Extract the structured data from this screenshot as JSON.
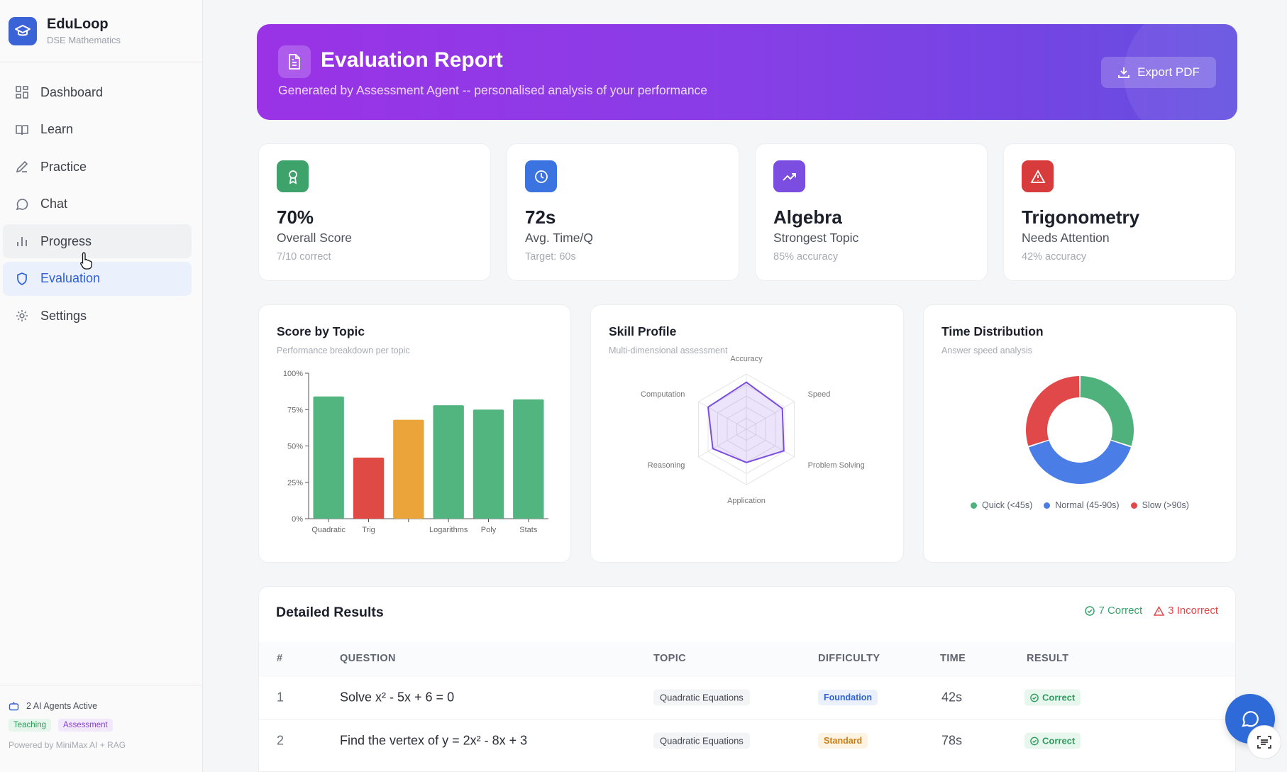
{
  "app": {
    "name": "EduLoop",
    "subtitle": "DSE Mathematics"
  },
  "sidebar": {
    "items": [
      {
        "label": "Dashboard",
        "icon": "grid-icon"
      },
      {
        "label": "Learn",
        "icon": "book-icon"
      },
      {
        "label": "Practice",
        "icon": "pencil-icon"
      },
      {
        "label": "Chat",
        "icon": "chat-bubble-icon"
      },
      {
        "label": "Progress",
        "icon": "bar-chart-icon"
      },
      {
        "label": "Evaluation",
        "icon": "shield-icon"
      },
      {
        "label": "Settings",
        "icon": "gear-icon"
      }
    ],
    "active": "Evaluation",
    "hovered": "Progress",
    "footer": {
      "agents_text": "2 AI Agents Active",
      "tags": [
        "Teaching",
        "Assessment"
      ],
      "powered": "Powered by MiniMax AI + RAG"
    }
  },
  "hero": {
    "title": "Evaluation Report",
    "subtitle": "Generated by Assessment Agent -- personalised analysis of your performance",
    "export_label": "Export PDF"
  },
  "stats": [
    {
      "value": "70%",
      "label": "Overall Score",
      "sub": "7/10 correct",
      "color": "#3ea36b",
      "icon": "award-icon"
    },
    {
      "value": "72s",
      "label": "Avg. Time/Q",
      "sub": "Target: 60s",
      "color": "#3b74e0",
      "icon": "clock-icon"
    },
    {
      "value": "Algebra",
      "label": "Strongest Topic",
      "sub": "85% accuracy",
      "color": "#7b4de0",
      "icon": "trending-up-icon"
    },
    {
      "value": "Trigonometry",
      "label": "Needs Attention",
      "sub": "42% accuracy",
      "color": "#d83b3b",
      "icon": "alert-triangle-icon"
    }
  ],
  "cards": {
    "topic": {
      "title": "Score by Topic",
      "sub": "Performance breakdown per topic"
    },
    "skill": {
      "title": "Skill Profile",
      "sub": "Multi-dimensional assessment"
    },
    "time": {
      "title": "Time Distribution",
      "sub": "Answer speed analysis"
    }
  },
  "chart_data": [
    {
      "type": "bar",
      "title": "Score by Topic",
      "categories": [
        "Quadratic",
        "Trig",
        "",
        "Logarithms",
        "Poly",
        "Stats"
      ],
      "values": [
        84,
        42,
        68,
        78,
        75,
        82
      ],
      "colors": [
        "#52b47e",
        "#e04a45",
        "#eaa43a",
        "#52b47e",
        "#52b47e",
        "#52b47e"
      ],
      "yticks": [
        "0%",
        "25%",
        "50%",
        "75%",
        "100%"
      ],
      "ylim": [
        0,
        100
      ]
    },
    {
      "type": "radar",
      "title": "Skill Profile",
      "axes": [
        "Accuracy",
        "Speed",
        "Problem Solving",
        "Application",
        "Reasoning",
        "Computation"
      ],
      "values": [
        85,
        75,
        78,
        60,
        70,
        80
      ],
      "max": 100
    },
    {
      "type": "pie",
      "title": "Time Distribution",
      "labels": [
        "Quick (<45s)",
        "Normal (45-90s)",
        "Slow (>90s)"
      ],
      "values": [
        3,
        4,
        3
      ],
      "colors": [
        "#4fb27d",
        "#4a7de6",
        "#e0484a"
      ],
      "donut": true
    }
  ],
  "results": {
    "title": "Detailed Results",
    "correct_label": "7 Correct",
    "incorrect_label": "3 Incorrect",
    "columns": [
      "#",
      "QUESTION",
      "TOPIC",
      "DIFFICULTY",
      "TIME",
      "RESULT"
    ],
    "rows": [
      {
        "num": "1",
        "question": "Solve x² - 5x + 6 = 0",
        "topic": "Quadratic Equations",
        "difficulty": "Foundation",
        "time": "42s",
        "result": "Correct"
      },
      {
        "num": "2",
        "question": "Find the vertex of y = 2x² - 8x + 3",
        "topic": "Quadratic Equations",
        "difficulty": "Standard",
        "time": "78s",
        "result": "Correct"
      }
    ]
  }
}
